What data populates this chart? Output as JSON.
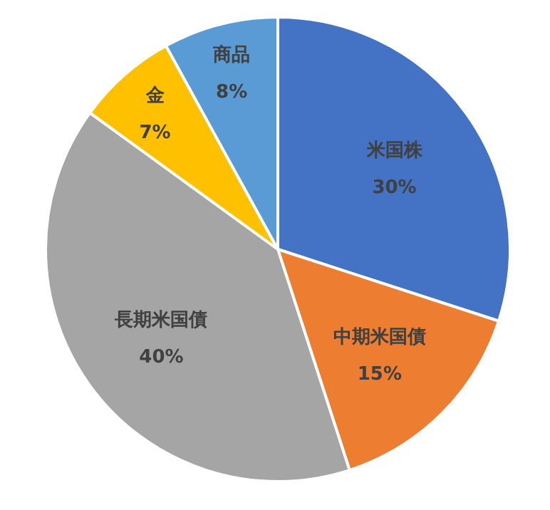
{
  "chart_data": {
    "type": "pie",
    "categories": [
      "米国株",
      "中期米国債",
      "長期米国債",
      "金",
      "商品"
    ],
    "values": [
      30,
      15,
      40,
      7,
      8
    ],
    "colors": [
      "#4472c4",
      "#ed7d31",
      "#a5a5a5",
      "#ffc000",
      "#5b9bd5"
    ],
    "value_labels": [
      "30%",
      "15%",
      "40%",
      "7%",
      "8%"
    ]
  }
}
